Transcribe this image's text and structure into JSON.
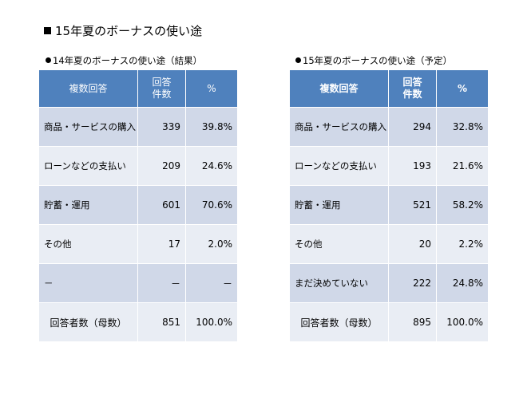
{
  "title": "15年夏のボーナスの使い途",
  "left": {
    "subtitle": "14年夏のボーナスの使い途（結果）",
    "headers": [
      "複数回答",
      "回答\n件数",
      "%"
    ],
    "rows": [
      {
        "label": "商品・サービスの購入",
        "count": "339",
        "pct": "39.8%"
      },
      {
        "label": "ローンなどの支払い",
        "count": "209",
        "pct": "24.6%"
      },
      {
        "label": "貯蓄・運用",
        "count": "601",
        "pct": "70.6%"
      },
      {
        "label": "その他",
        "count": "17",
        "pct": "2.0%"
      },
      {
        "label": "－",
        "count": "－",
        "pct": "－"
      },
      {
        "label": "回答者数（母数）",
        "count": "851",
        "pct": "100.0%"
      }
    ]
  },
  "right": {
    "subtitle": "15年夏のボーナスの使い途（予定）",
    "headers": [
      "複数回答",
      "回答\n件数",
      "%"
    ],
    "rows": [
      {
        "label": "商品・サービスの購入",
        "count": "294",
        "pct": "32.8%"
      },
      {
        "label": "ローンなどの支払い",
        "count": "193",
        "pct": "21.6%"
      },
      {
        "label": "貯蓄・運用",
        "count": "521",
        "pct": "58.2%"
      },
      {
        "label": "その他",
        "count": "20",
        "pct": "2.2%"
      },
      {
        "label": "まだ決めていない",
        "count": "222",
        "pct": "24.8%"
      },
      {
        "label": "回答者数（母数）",
        "count": "895",
        "pct": "100.0%"
      }
    ]
  }
}
